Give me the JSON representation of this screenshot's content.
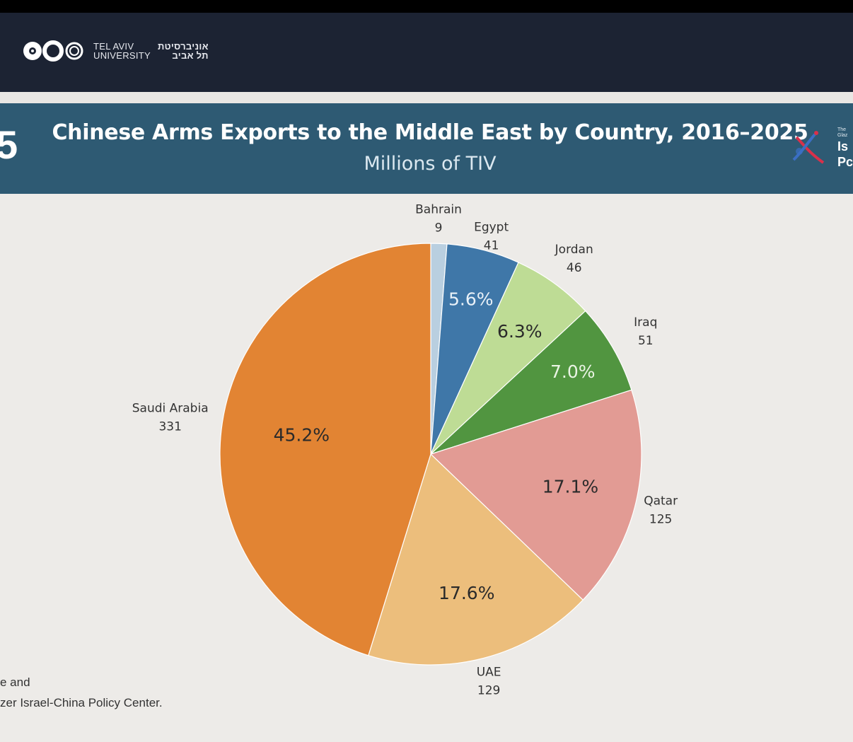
{
  "header": {
    "university_en_line1": "TEL AVIV",
    "university_en_line2": "UNIVERSITY",
    "university_he_line1": "אוניברסיטת",
    "university_he_line2": "תל אביב",
    "left_mark": "5",
    "right_logo_line1": "Is",
    "right_logo_line2": "Pc",
    "right_logo_tiny1": "The",
    "right_logo_tiny2": "Glaz"
  },
  "chart_data": {
    "type": "pie",
    "title": "Chinese Arms Exports to the Middle East by Country, 2016–2025",
    "subtitle": "Millions of TIV",
    "start_angle_deg": 0,
    "direction": "clockwise",
    "slices": [
      {
        "name": "Bahrain",
        "value": 9,
        "percent_label": "",
        "color": "#b9cfe0"
      },
      {
        "name": "Egypt",
        "value": 41,
        "percent_label": "5.6%",
        "color": "#3f77a8",
        "label_color": "#e9f1f8"
      },
      {
        "name": "Jordan",
        "value": 46,
        "percent_label": "6.3%",
        "color": "#bedc95",
        "label_color": "#2a2a2a"
      },
      {
        "name": "Iraq",
        "value": 51,
        "percent_label": "7.0%",
        "color": "#519540",
        "label_color": "#eaf4e4"
      },
      {
        "name": "Qatar",
        "value": 125,
        "percent_label": "17.1%",
        "color": "#e29b94",
        "label_color": "#2a2a2a"
      },
      {
        "name": "UAE",
        "value": 129,
        "percent_label": "17.6%",
        "color": "#ecbe7c",
        "label_color": "#2a2a2a"
      },
      {
        "name": "Saudi Arabia",
        "value": 331,
        "percent_label": "45.2%",
        "color": "#e28433",
        "label_color": "#2a2a2a"
      }
    ]
  },
  "source": {
    "line1": "e and",
    "line2": "zer Israel-China Policy Center."
  }
}
